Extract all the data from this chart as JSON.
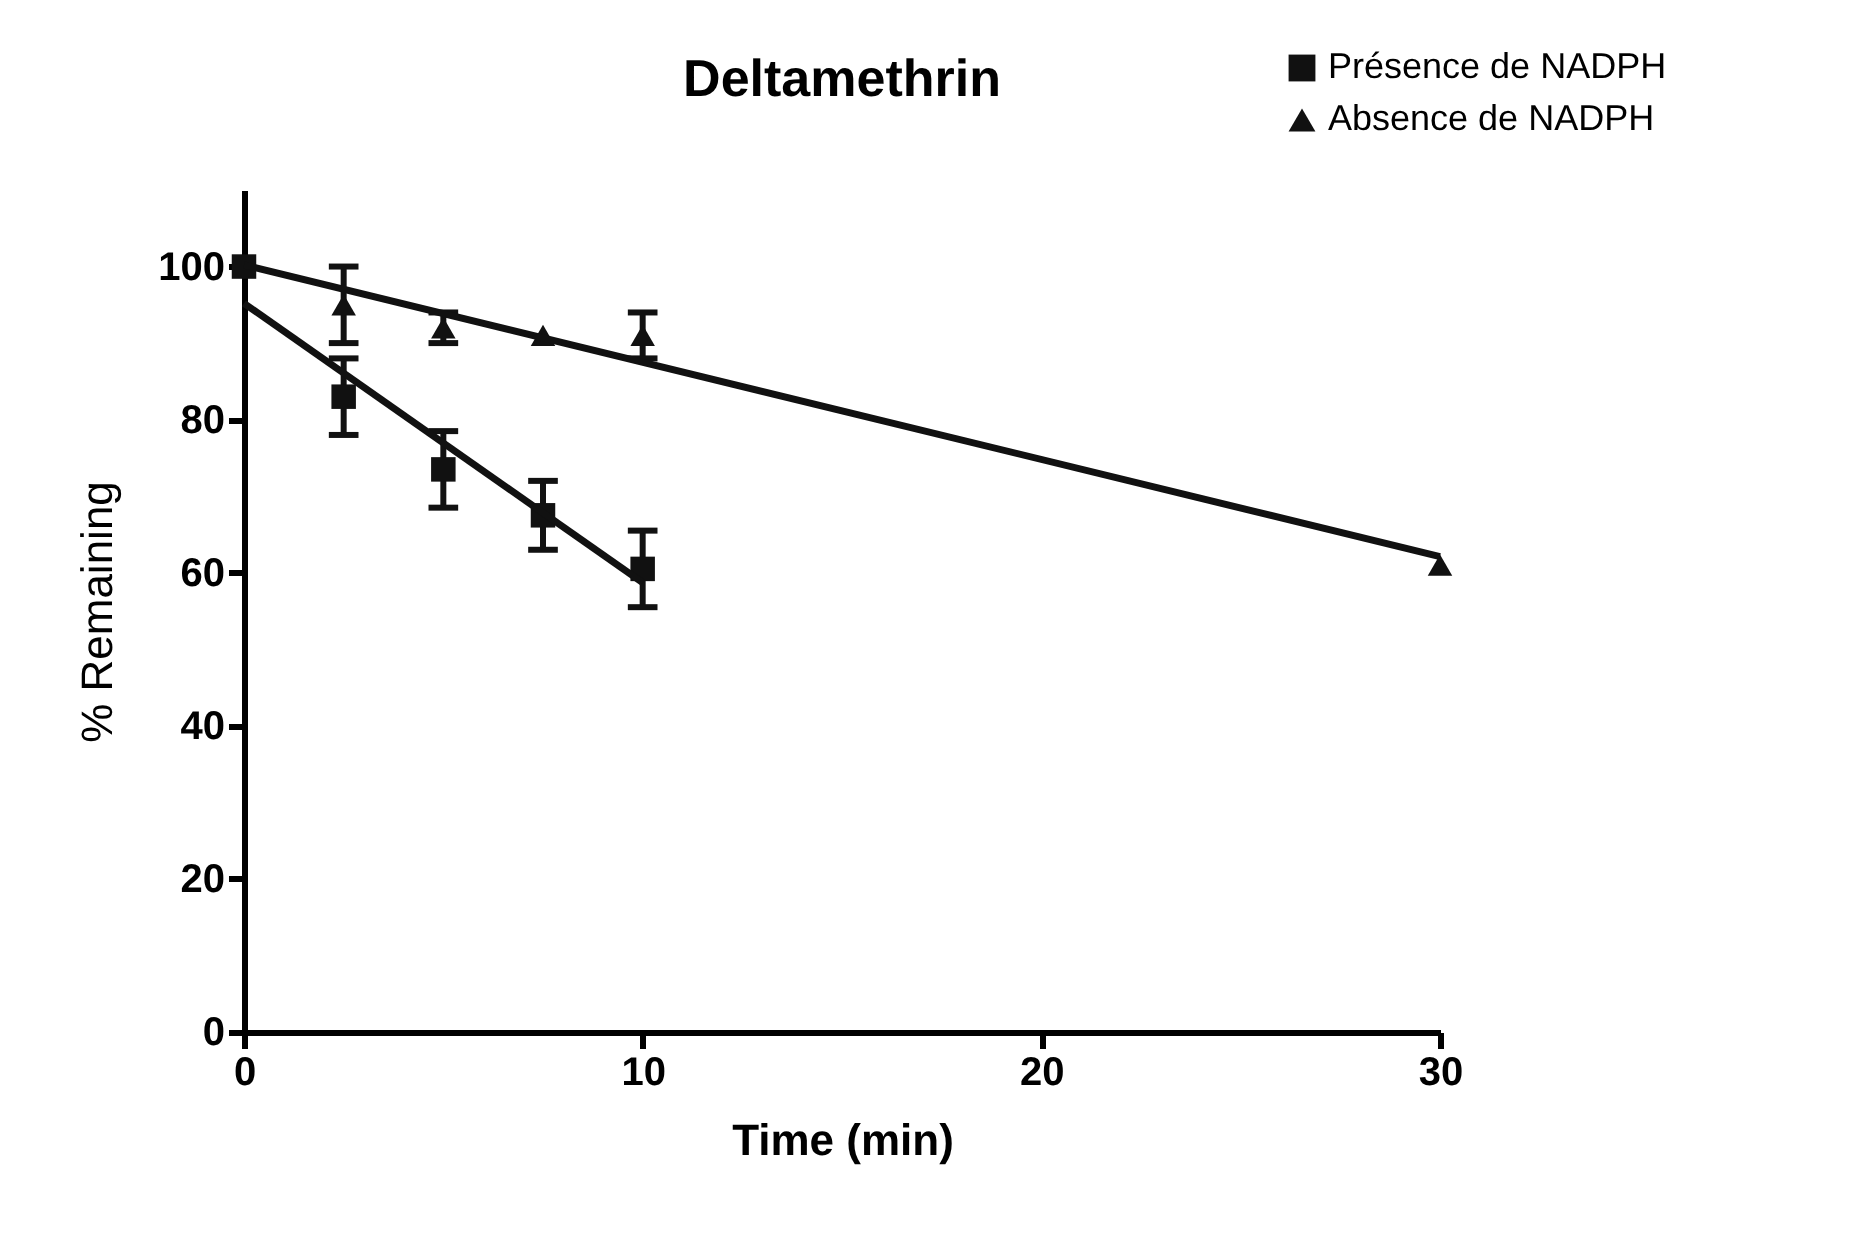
{
  "chart_data": {
    "type": "scatter",
    "title": "Deltamethrin",
    "xlabel": "Time (min)",
    "ylabel": "% Remaining",
    "xlim": [
      0,
      30
    ],
    "xticks": [
      0,
      10,
      20,
      30
    ],
    "ylim": [
      0,
      110
    ],
    "yticks": [
      0,
      20,
      40,
      60,
      80,
      100
    ],
    "grid": false,
    "legend": "top right",
    "series": [
      {
        "name": "Présence de NADPH",
        "marker": "square",
        "color": "#111111",
        "x": [
          0,
          2.5,
          5,
          7.5,
          10
        ],
        "values": [
          100,
          83,
          73.5,
          67.5,
          60.5
        ],
        "errors": [
          null,
          5,
          5,
          4.5,
          5
        ]
      },
      {
        "name": "Absence de NADPH",
        "marker": "triangle",
        "color": "#111111",
        "x": [
          2.5,
          5,
          7.5,
          10,
          30
        ],
        "values": [
          95,
          92,
          91,
          91,
          61
        ],
        "errors": [
          5,
          2,
          null,
          3,
          null
        ]
      },
      {
        "type": "line",
        "color": "#111111",
        "x": [
          0,
          10
        ],
        "values": [
          95.2,
          58.7
        ]
      },
      {
        "type": "line",
        "color": "#111111",
        "x": [
          0,
          30
        ],
        "values": [
          100.2,
          62.1
        ]
      }
    ]
  }
}
